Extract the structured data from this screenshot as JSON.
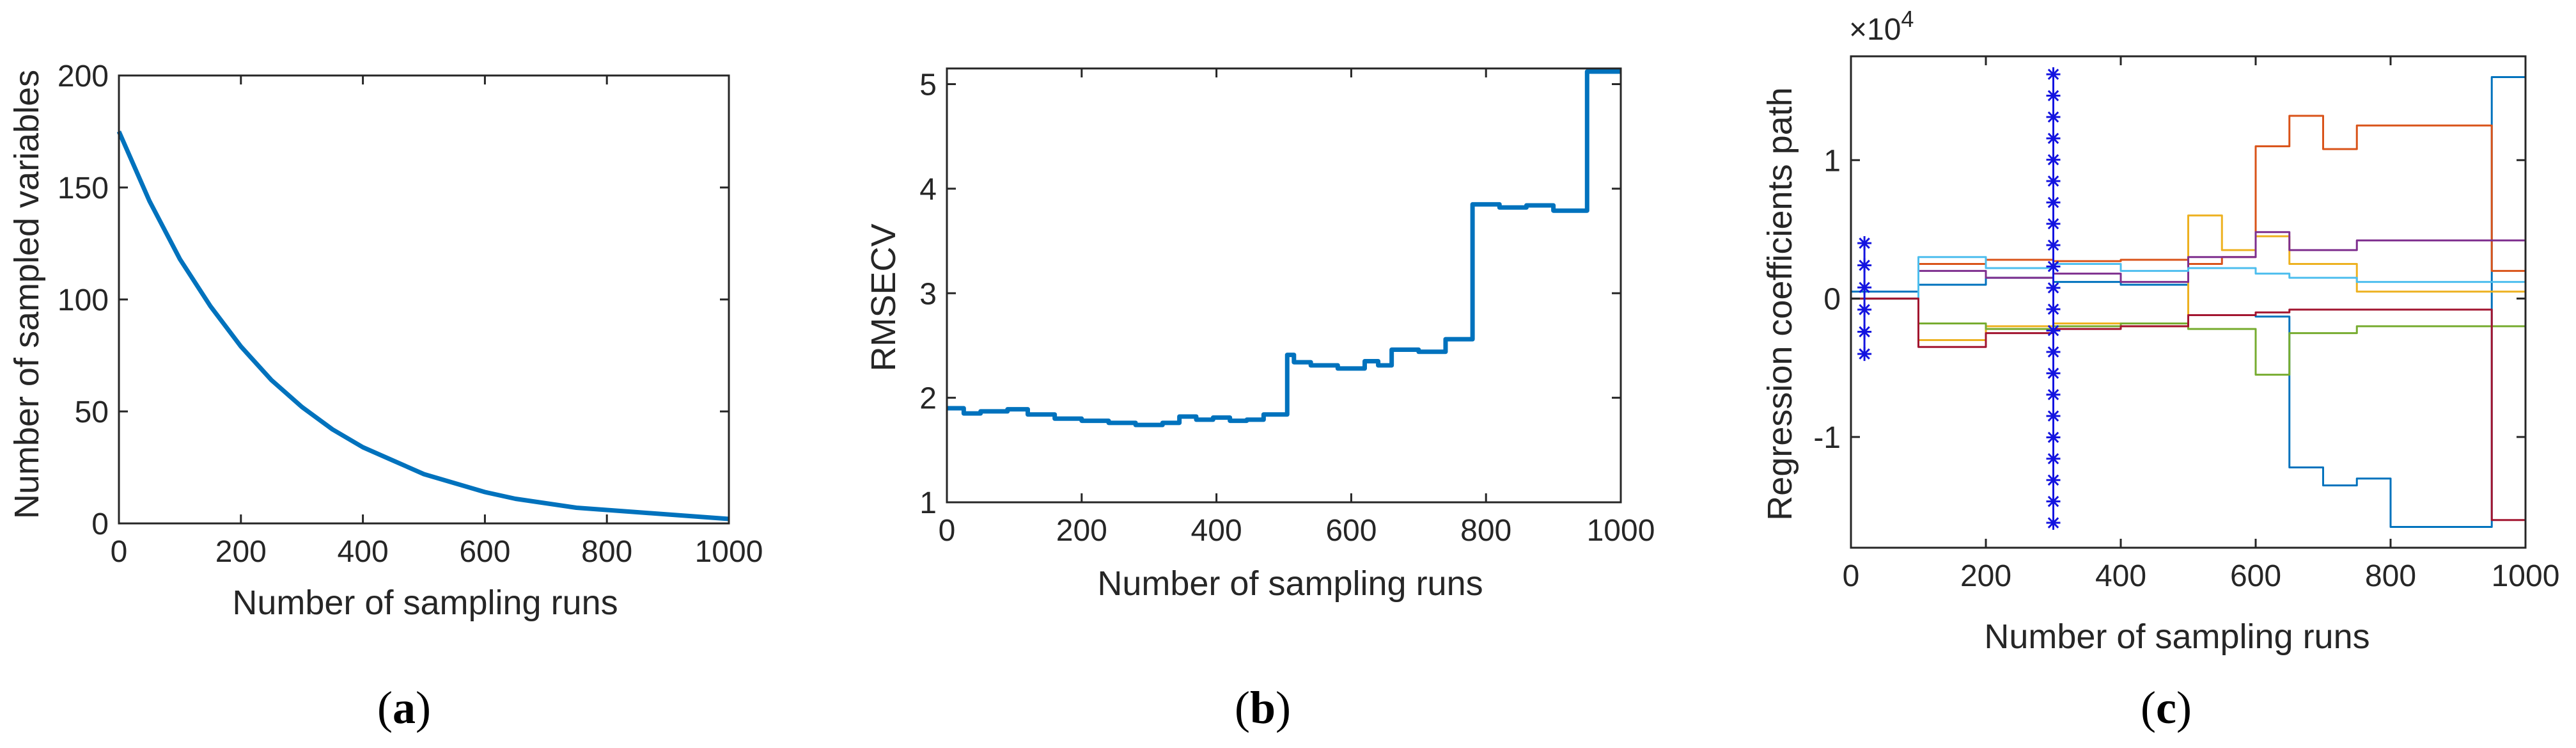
{
  "colors": {
    "main_line": "#0072BD",
    "axis": "#262626",
    "marker": "#1414E0",
    "series_palette": [
      "#0072BD",
      "#D95319",
      "#EDB120",
      "#7E2F8E",
      "#77AC30",
      "#4DBEEE",
      "#A2142F"
    ]
  },
  "chart_data": [
    {
      "panel_label": "a",
      "type": "line",
      "xlabel": "Number of sampling runs",
      "ylabel": "Number of sampled variables",
      "xlim": [
        0,
        1000
      ],
      "ylim": [
        0,
        200
      ],
      "xticks": [
        0,
        200,
        400,
        600,
        800,
        1000
      ],
      "yticks": [
        0,
        50,
        100,
        150,
        200
      ],
      "xtick_labels": [
        "0",
        "200",
        "400",
        "600",
        "800",
        "1000"
      ],
      "ytick_labels": [
        "0",
        "50",
        "100",
        "150",
        "200"
      ],
      "grid": false,
      "series": [
        {
          "x": [
            0,
            50,
            100,
            150,
            200,
            250,
            300,
            350,
            400,
            450,
            500,
            550,
            600,
            650,
            700,
            750,
            800,
            850,
            900,
            950,
            1000
          ],
          "y": [
            175,
            144,
            118,
            97,
            79,
            64,
            52,
            42,
            34,
            28,
            22,
            18,
            14,
            11,
            9,
            7,
            6,
            5,
            4,
            3,
            2
          ]
        }
      ]
    },
    {
      "panel_label": "b",
      "type": "line",
      "step": true,
      "xlabel": "Number of sampling runs",
      "ylabel": "RMSECV",
      "xlim": [
        0,
        1000
      ],
      "ylim": [
        1,
        5.15
      ],
      "xticks": [
        0,
        200,
        400,
        600,
        800,
        1000
      ],
      "yticks": [
        1,
        2,
        3,
        4,
        5
      ],
      "xtick_labels": [
        "0",
        "200",
        "400",
        "600",
        "800",
        "1000"
      ],
      "ytick_labels": [
        "1",
        "2",
        "3",
        "4",
        "5"
      ],
      "grid": false,
      "series": [
        {
          "x": [
            0,
            25,
            50,
            90,
            120,
            160,
            200,
            240,
            280,
            320,
            345,
            370,
            395,
            420,
            445,
            470,
            505,
            515,
            540,
            580,
            620,
            640,
            660,
            700,
            740,
            780,
            820,
            860,
            900,
            950,
            1000
          ],
          "y": [
            1.9,
            1.85,
            1.87,
            1.89,
            1.84,
            1.8,
            1.78,
            1.76,
            1.74,
            1.76,
            1.82,
            1.79,
            1.81,
            1.78,
            1.79,
            1.84,
            2.41,
            2.34,
            2.31,
            2.28,
            2.35,
            2.31,
            2.46,
            2.44,
            2.56,
            3.85,
            3.82,
            3.84,
            3.79,
            5.12,
            5.12
          ]
        }
      ]
    },
    {
      "panel_label": "c",
      "type": "line",
      "step": true,
      "xlabel": "Number of sampling runs",
      "ylabel": "Regression coefficients path",
      "y_exponent_base": "×10",
      "y_exponent_power": "4",
      "xlim": [
        0,
        1000
      ],
      "ylim": [
        -1.8,
        1.75
      ],
      "xticks": [
        0,
        200,
        400,
        600,
        800,
        1000
      ],
      "yticks": [
        -1,
        0,
        1
      ],
      "xtick_labels": [
        "0",
        "200",
        "400",
        "600",
        "800",
        "1000"
      ],
      "ytick_labels": [
        "-1",
        "0",
        "1"
      ],
      "grid": false,
      "marker_columns": [
        {
          "x": 20,
          "ymin": -0.4,
          "ymax": 0.4,
          "marker": "*"
        },
        {
          "x": 300,
          "ymin": -1.62,
          "ymax": 1.62,
          "marker": "*"
        }
      ],
      "series": [
        {
          "x": [
            0,
            100,
            200,
            300,
            400,
            500,
            600,
            650,
            700,
            750,
            800,
            950,
            1000
          ],
          "y": [
            0.05,
            0.1,
            0.15,
            0.12,
            0.1,
            -0.12,
            -0.13,
            -1.22,
            -1.35,
            -1.3,
            -1.65,
            1.6,
            1.6
          ]
        },
        {
          "x": [
            0,
            100,
            200,
            300,
            400,
            500,
            550,
            600,
            650,
            700,
            750,
            950,
            1000
          ],
          "y": [
            0.0,
            0.25,
            0.28,
            0.27,
            0.28,
            0.25,
            0.3,
            1.1,
            1.32,
            1.08,
            1.25,
            0.2,
            0.2
          ]
        },
        {
          "x": [
            0,
            100,
            200,
            300,
            400,
            500,
            550,
            600,
            650,
            750,
            950,
            1000
          ],
          "y": [
            0.0,
            -0.3,
            -0.2,
            -0.18,
            -0.2,
            0.6,
            0.35,
            0.45,
            0.25,
            0.05,
            0.05,
            0.05
          ]
        },
        {
          "x": [
            0,
            100,
            200,
            300,
            400,
            500,
            600,
            650,
            750,
            950,
            1000
          ],
          "y": [
            0.0,
            0.2,
            0.15,
            0.18,
            0.12,
            0.3,
            0.48,
            0.35,
            0.42,
            0.42,
            0.42
          ]
        },
        {
          "x": [
            0,
            100,
            200,
            300,
            400,
            500,
            600,
            650,
            750,
            950,
            1000
          ],
          "y": [
            0.0,
            -0.18,
            -0.22,
            -0.2,
            -0.18,
            -0.22,
            -0.55,
            -0.25,
            -0.2,
            -0.2,
            -0.2
          ]
        },
        {
          "x": [
            0,
            100,
            200,
            300,
            400,
            500,
            600,
            650,
            750,
            950,
            1000
          ],
          "y": [
            0.0,
            0.3,
            0.22,
            0.25,
            0.2,
            0.22,
            0.18,
            0.15,
            0.12,
            0.12,
            0.12
          ]
        },
        {
          "x": [
            0,
            100,
            200,
            300,
            400,
            500,
            600,
            650,
            750,
            950,
            1000
          ],
          "y": [
            0.0,
            -0.35,
            -0.25,
            -0.22,
            -0.2,
            -0.12,
            -0.1,
            -0.08,
            -0.08,
            -1.6,
            -1.6
          ]
        }
      ]
    }
  ]
}
